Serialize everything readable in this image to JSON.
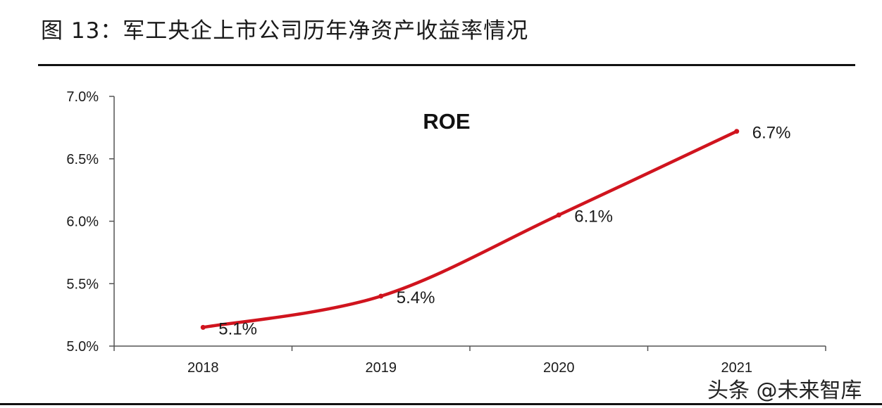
{
  "figure_title": "图 13：军工央企上市公司历年净资产收益率情况",
  "watermark": "头条 @未来智库",
  "chart_data": {
    "type": "line",
    "title": "ROE",
    "xlabel": "",
    "ylabel": "",
    "categories": [
      "2018",
      "2019",
      "2020",
      "2021"
    ],
    "series": [
      {
        "name": "ROE",
        "values": [
          5.15,
          5.4,
          6.05,
          6.72
        ],
        "labels": [
          "5.1%",
          "5.4%",
          "6.1%",
          "6.7%"
        ],
        "color": "#d0141e"
      }
    ],
    "ylim": [
      5.0,
      7.0
    ],
    "yticks": [
      5.0,
      5.5,
      6.0,
      6.5,
      7.0
    ],
    "ytick_labels": [
      "5.0%",
      "5.5%",
      "6.0%",
      "6.5%",
      "7.0%"
    ],
    "grid": false,
    "legend": "none"
  }
}
